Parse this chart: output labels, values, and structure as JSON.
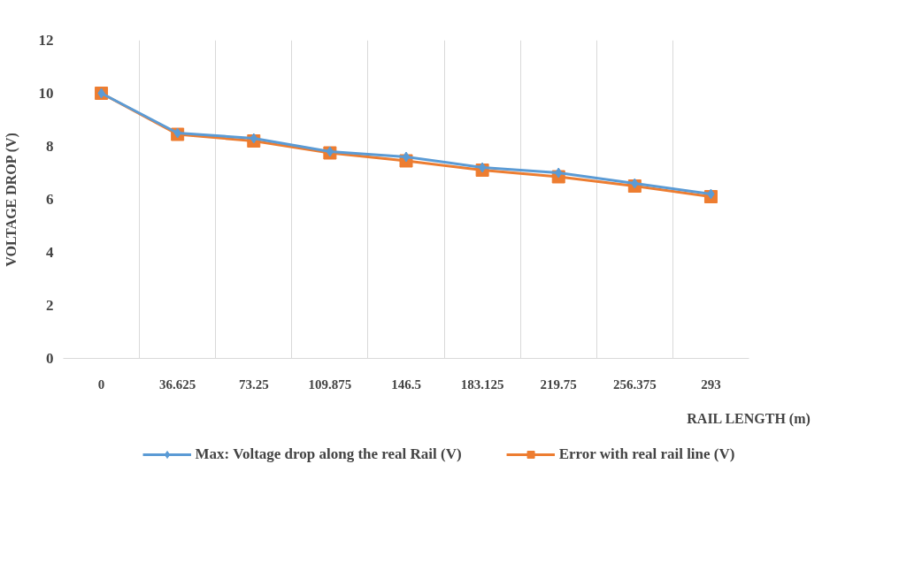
{
  "chart_data": {
    "type": "line",
    "xlabel": "RAIL LENGTH (m)",
    "ylabel": "VOLTAGE DROP (V)",
    "categories": [
      "0",
      "36.625",
      "73.25",
      "109.875",
      "146.5",
      "183.125",
      "219.75",
      "256.375",
      "293"
    ],
    "series": [
      {
        "name": "Max: Voltage drop along the real Rail (V)",
        "color": "#5b9bd5",
        "marker": "diamond",
        "values": [
          10,
          8.5,
          8.3,
          7.8,
          7.6,
          7.2,
          7.0,
          6.6,
          6.2
        ]
      },
      {
        "name": "Error with real rail line (V)",
        "color": "#ed7d31",
        "marker": "square",
        "values": [
          10,
          8.45,
          8.2,
          7.75,
          7.45,
          7.1,
          6.85,
          6.5,
          6.1
        ]
      }
    ],
    "ylim": [
      0,
      12
    ],
    "yticks": [
      0,
      2,
      4,
      6,
      8,
      10,
      12
    ],
    "grid": "x",
    "legend": "bottom"
  }
}
